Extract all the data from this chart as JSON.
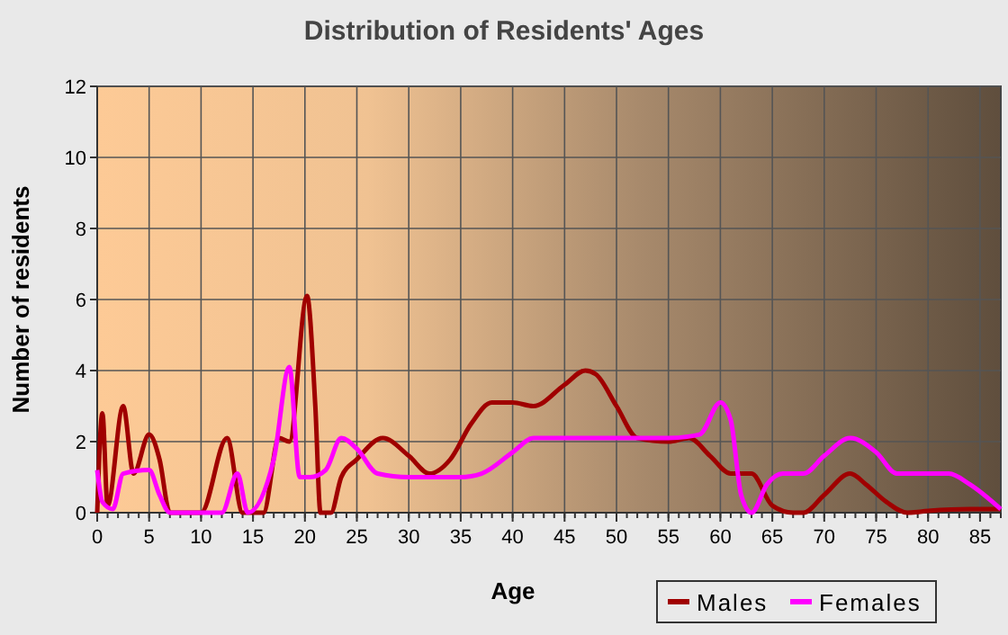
{
  "chart_data": {
    "type": "line",
    "title": "Distribution of Residents' Ages",
    "xlabel": "Age",
    "ylabel": "Number of residents",
    "xlim": [
      0,
      87
    ],
    "xticks": [
      0,
      5,
      10,
      15,
      20,
      25,
      30,
      35,
      40,
      45,
      50,
      55,
      60,
      65,
      70,
      75,
      80,
      85
    ],
    "ylim": [
      0,
      12
    ],
    "yticks": [
      0,
      2,
      4,
      6,
      8,
      10,
      12
    ],
    "grid": true,
    "legend": "bottom right",
    "marker": "none",
    "series": [
      {
        "name": "Males",
        "color": "#a00000",
        "x": [
          0,
          0.5,
          1,
          2.5,
          3.5,
          5,
          6,
          7,
          10,
          12.5,
          14,
          16,
          17.5,
          18.5,
          20.2,
          21,
          21.5,
          22.5,
          23.5,
          25,
          27.5,
          30,
          32,
          34,
          36,
          38,
          40,
          42,
          45,
          47,
          48,
          50,
          52,
          55,
          57,
          59,
          61,
          63,
          65,
          67,
          68,
          70,
          72.5,
          74,
          76,
          78,
          80,
          84,
          87
        ],
        "values": [
          0,
          2.8,
          0.2,
          3,
          1.1,
          2.2,
          1.5,
          0,
          0,
          2.1,
          0,
          0,
          2.1,
          2,
          6.1,
          3,
          0,
          0,
          1,
          1.5,
          2.1,
          1.6,
          1.1,
          1.5,
          2.5,
          3.1,
          3.1,
          3,
          3.6,
          4,
          3.9,
          3,
          2.1,
          2,
          2.1,
          1.6,
          1.1,
          1.1,
          0.2,
          0,
          0,
          0.5,
          1.1,
          0.8,
          0.3,
          0,
          0.05,
          0.1,
          0.1
        ]
      },
      {
        "name": "Females",
        "color": "#ff00ff",
        "x": [
          0,
          0.5,
          1.5,
          2.5,
          5,
          6,
          7,
          12,
          13.5,
          14.5,
          17,
          18.5,
          19.5,
          20.5,
          22,
          23.5,
          25,
          27,
          30,
          35,
          37,
          40,
          42,
          45,
          50,
          55,
          58,
          60,
          61,
          62,
          63,
          64.5,
          66,
          68,
          70,
          72.5,
          75,
          77,
          80,
          82,
          84,
          87
        ],
        "values": [
          1.2,
          0.3,
          0.1,
          1.1,
          1.2,
          0.5,
          0,
          0,
          1.1,
          0,
          1.5,
          4.1,
          1,
          1,
          1.2,
          2.1,
          1.8,
          1.1,
          1,
          1,
          1.1,
          1.7,
          2.1,
          2.1,
          2.1,
          2.1,
          2.2,
          3.1,
          2.6,
          0.5,
          0,
          0.8,
          1.1,
          1.1,
          1.6,
          2.1,
          1.7,
          1.1,
          1.1,
          1.1,
          0.8,
          0.1
        ]
      }
    ]
  }
}
